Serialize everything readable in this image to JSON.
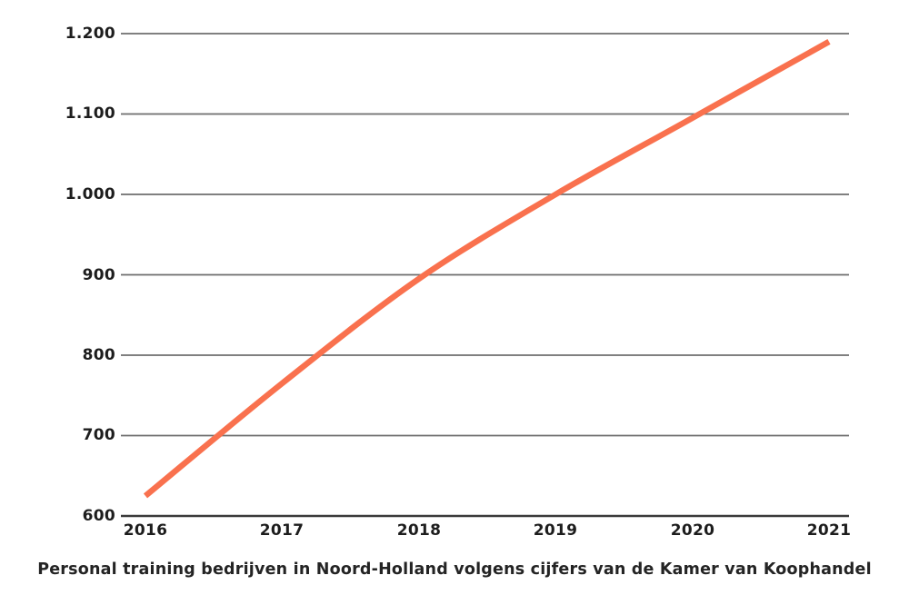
{
  "page": {
    "background_color": "#ffffff"
  },
  "caption": "Personal training bedrijven in Noord-Holland volgens cijfers van de Kamer van Koophandel",
  "chart_data": {
    "type": "line",
    "title": "",
    "xlabel": "",
    "ylabel": "",
    "categories": [
      "2016",
      "2017",
      "2018",
      "2019",
      "2020",
      "2021"
    ],
    "values": [
      625,
      765,
      895,
      1000,
      1095,
      1190
    ],
    "series_name": "Personal training bedrijven in Noord-Holland",
    "ylim": [
      600,
      1200
    ],
    "y_ticks": [
      1200,
      1100,
      1000,
      900,
      800,
      700,
      600
    ],
    "y_tick_labels": [
      "1.200",
      "1.100",
      "1.000",
      "900",
      "800",
      "700",
      "600"
    ],
    "x_tick_labels": [
      "2016",
      "2017",
      "2018",
      "2019",
      "2020",
      "2021"
    ],
    "grid": "horizontal-only",
    "legend": "none",
    "smooth": true,
    "line_color": "#F9714E",
    "gridline_color": "#6e6e6e",
    "axis_line_color": "#3a3a3a",
    "tick_label_color": "#1d1d1d"
  }
}
